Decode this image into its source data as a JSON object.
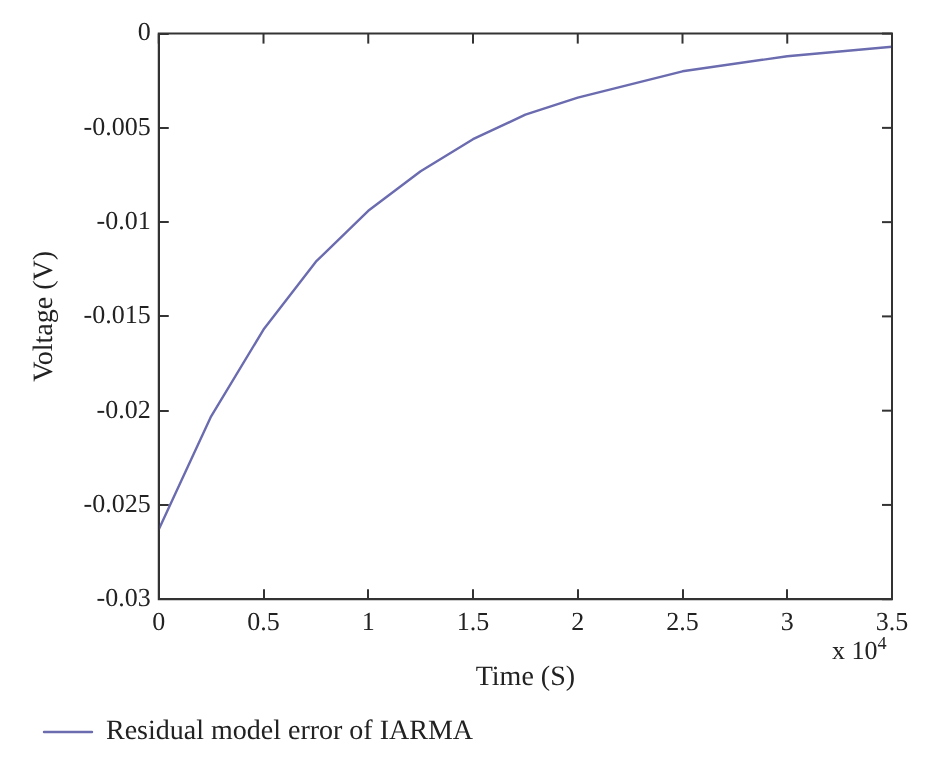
{
  "chart_data": {
    "type": "line",
    "xlabel": "Time (S)",
    "ylabel": "Voltage (V)",
    "x": [
      0,
      0.25,
      0.5,
      0.75,
      1,
      1.25,
      1.5,
      1.75,
      2,
      2.5,
      3,
      3.5
    ],
    "series": [
      {
        "name": "Residual model error of IARMA",
        "color": "#6b6bb0",
        "values": [
          -0.0263,
          -0.0203,
          -0.0157,
          -0.0121,
          -0.0094,
          -0.0073,
          -0.0056,
          -0.0043,
          -0.0034,
          -0.002,
          -0.0012,
          -0.0007
        ]
      }
    ],
    "xlim": [
      0,
      3.5
    ],
    "xticks": [
      0,
      0.5,
      1,
      1.5,
      2,
      2.5,
      3,
      3.5
    ],
    "ylim": [
      -0.03,
      0
    ],
    "yticks": [
      -0.03,
      -0.025,
      -0.02,
      -0.015,
      -0.01,
      -0.005,
      0
    ],
    "annotations": [
      "x 10$^{4}$"
    ],
    "grid": false,
    "legend": "bottom",
    "marker": "none",
    "line_style": "solid"
  }
}
